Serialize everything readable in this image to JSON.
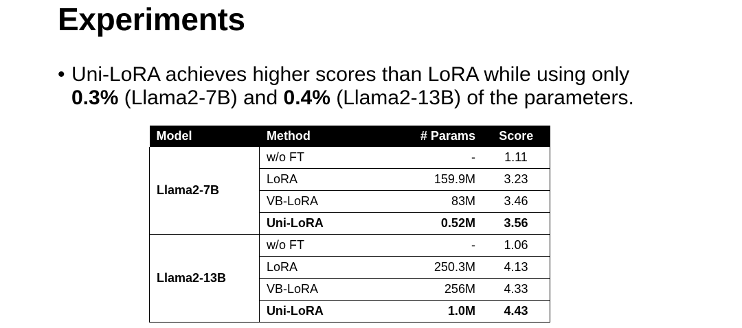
{
  "slide": {
    "title": "Experiments",
    "bullet": {
      "line1": "Uni-LoRA achieves higher scores than LoRA while using only",
      "pct1": "0.3%",
      "model1": " (Llama2-7B) and ",
      "pct2": "0.4%",
      "model2": " (Llama2-13B) of the parameters."
    }
  },
  "table": {
    "headers": {
      "model": "Model",
      "method": "Method",
      "params": "# Params",
      "score": "Score"
    },
    "groups": [
      {
        "model": "Llama2-7B",
        "rows": [
          {
            "method": "w/o FT",
            "params": "-",
            "score": "1.11",
            "bold": false
          },
          {
            "method": "LoRA",
            "params": "159.9M",
            "score": "3.23",
            "bold": false
          },
          {
            "method": "VB-LoRA",
            "params": "83M",
            "score": "3.46",
            "bold": false
          },
          {
            "method": "Uni-LoRA",
            "params": "0.52M",
            "score": "3.56",
            "bold": true
          }
        ]
      },
      {
        "model": "Llama2-13B",
        "rows": [
          {
            "method": "w/o FT",
            "params": "-",
            "score": "1.06",
            "bold": false
          },
          {
            "method": "LoRA",
            "params": "250.3M",
            "score": "4.13",
            "bold": false
          },
          {
            "method": "VB-LoRA",
            "params": "256M",
            "score": "4.33",
            "bold": false
          },
          {
            "method": "Uni-LoRA",
            "params": "1.0M",
            "score": "4.43",
            "bold": true
          }
        ]
      }
    ]
  }
}
